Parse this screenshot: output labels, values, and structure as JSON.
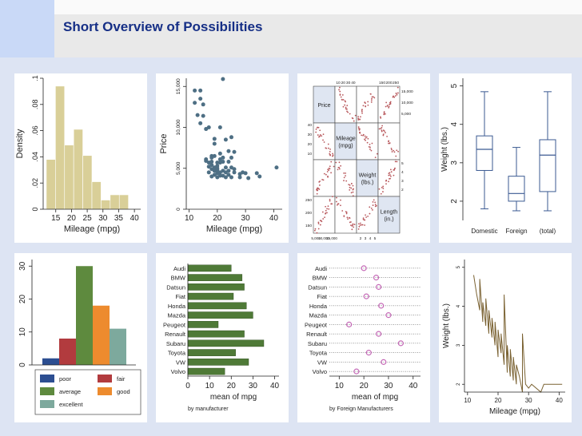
{
  "page": {
    "title": "Short Overview of Possibilities"
  },
  "colors": {
    "background": "#dde4f3",
    "title": "#162f86",
    "hist_fill": "#d9cf98",
    "scatter_point": "#4e6f84",
    "matrix_point": "#b8585c",
    "box_line": "#3b5a92",
    "hbar_fill": "#4f7a37",
    "dot": "#c569b7",
    "line": "#7a6232"
  },
  "chart_data": [
    {
      "id": "histogram",
      "type": "bar",
      "xlabel": "Mileage (mpg)",
      "ylabel": "Density",
      "xticks": [
        15,
        20,
        25,
        30,
        35,
        40
      ],
      "yticks": [
        0,
        0.02,
        0.04,
        0.06,
        0.08,
        0.1
      ],
      "ytick_labels": [
        "0",
        ".02",
        ".04",
        ".06",
        ".08",
        ".1"
      ],
      "xlim": [
        11,
        42
      ],
      "ylim": [
        0,
        0.1
      ],
      "bins": [
        {
          "x0": 12,
          "x1": 14.9,
          "density": 0.038
        },
        {
          "x0": 14.9,
          "x1": 17.8,
          "density": 0.094
        },
        {
          "x0": 17.8,
          "x1": 20.7,
          "density": 0.049
        },
        {
          "x0": 20.7,
          "x1": 23.6,
          "density": 0.061
        },
        {
          "x0": 23.6,
          "x1": 26.5,
          "density": 0.041
        },
        {
          "x0": 26.5,
          "x1": 29.4,
          "density": 0.021
        },
        {
          "x0": 29.4,
          "x1": 32.3,
          "density": 0.007
        },
        {
          "x0": 32.3,
          "x1": 35.2,
          "density": 0.011
        },
        {
          "x0": 35.2,
          "x1": 38.1,
          "density": 0.011
        }
      ]
    },
    {
      "id": "scatter",
      "type": "scatter",
      "xlabel": "Mileage (mpg)",
      "ylabel": "Price",
      "xticks": [
        10,
        20,
        30,
        40
      ],
      "yticks": [
        0,
        5000,
        10000,
        15000
      ],
      "ytick_labels": [
        "0",
        "5,000",
        "10,000",
        "15,000"
      ],
      "xlim": [
        9,
        43
      ],
      "ylim": [
        0,
        16000
      ],
      "points": [
        [
          12,
          13000
        ],
        [
          12,
          14500
        ],
        [
          13,
          11500
        ],
        [
          14,
          13500
        ],
        [
          14,
          14500
        ],
        [
          14,
          10500
        ],
        [
          15,
          11400
        ],
        [
          15,
          12800
        ],
        [
          16,
          9800
        ],
        [
          16,
          6100
        ],
        [
          16,
          5900
        ],
        [
          17,
          10000
        ],
        [
          17,
          4500
        ],
        [
          17,
          5200
        ],
        [
          17,
          5700
        ],
        [
          18,
          6300
        ],
        [
          18,
          5400
        ],
        [
          18,
          4900
        ],
        [
          18,
          5800
        ],
        [
          18,
          4000
        ],
        [
          19,
          4800
        ],
        [
          19,
          4700
        ],
        [
          19,
          4200
        ],
        [
          19,
          6500
        ],
        [
          19,
          5100
        ],
        [
          20,
          5000
        ],
        [
          20,
          4400
        ],
        [
          20,
          4800
        ],
        [
          20,
          3900
        ],
        [
          20,
          5300
        ],
        [
          21,
          4500
        ],
        [
          21,
          5700
        ],
        [
          21,
          4100
        ],
        [
          21,
          6100
        ],
        [
          22,
          4100
        ],
        [
          22,
          5800
        ],
        [
          22,
          4700
        ],
        [
          22,
          6300
        ],
        [
          23,
          5100
        ],
        [
          23,
          4500
        ],
        [
          23,
          3900
        ],
        [
          24,
          4200
        ],
        [
          24,
          5800
        ],
        [
          24,
          7100
        ],
        [
          24,
          4700
        ],
        [
          25,
          5100
        ],
        [
          25,
          3900
        ],
        [
          25,
          6300
        ],
        [
          26,
          4900
        ],
        [
          26,
          4500
        ],
        [
          28,
          4300
        ],
        [
          28,
          3900
        ],
        [
          29,
          4500
        ],
        [
          30,
          4400
        ],
        [
          31,
          3800
        ],
        [
          34,
          4400
        ],
        [
          35,
          4000
        ],
        [
          41,
          5100
        ],
        [
          25,
          8800
        ],
        [
          23,
          8500
        ],
        [
          26,
          7000
        ],
        [
          21,
          10000
        ],
        [
          19,
          8600
        ],
        [
          19,
          8000
        ],
        [
          21,
          6800
        ],
        [
          22,
          15900
        ],
        [
          20,
          5700
        ],
        [
          18,
          6500
        ]
      ]
    },
    {
      "id": "matrix",
      "type": "scatter",
      "variables": [
        "Price",
        "Mileage (mpg)",
        "Weight (lbs.)",
        "Length (in.)"
      ],
      "top_ticks_left": [
        "10",
        "20",
        "30",
        "40"
      ],
      "top_ticks_right": [
        "150",
        "200",
        "250"
      ],
      "right_ticks_upper": [
        "15,000",
        "10,000",
        "5,000"
      ],
      "right_ticks_lower": [
        "5",
        "4",
        "3",
        "2"
      ],
      "left_ticks_upper": [
        "40",
        "30",
        "20",
        "10"
      ],
      "left_ticks_lower": [
        "250",
        "200",
        "150"
      ],
      "bottom_ticks_left": [
        "5,000",
        "10,000",
        "15,000"
      ],
      "bottom_ticks_right": [
        "2",
        "3",
        "4",
        "5"
      ]
    },
    {
      "id": "boxplot",
      "type": "box",
      "ylabel": "Weight (lbs.)",
      "categories": [
        "Domestic",
        "Foreign",
        "(total)"
      ],
      "yticks": [
        2,
        3,
        4,
        5
      ],
      "ylim": [
        1.5,
        5.2
      ],
      "boxes": [
        {
          "min": 1.8,
          "q1": 2.8,
          "median": 3.35,
          "q3": 3.7,
          "max": 4.85
        },
        {
          "min": 1.75,
          "q1": 2.0,
          "median": 2.2,
          "q3": 2.65,
          "max": 3.4
        },
        {
          "min": 1.75,
          "q1": 2.25,
          "median": 3.2,
          "q3": 3.6,
          "max": 4.85
        }
      ]
    },
    {
      "id": "bars",
      "type": "bar",
      "yticks": [
        0,
        10,
        20,
        30
      ],
      "ylim": [
        0,
        32
      ],
      "series": [
        {
          "name": "poor",
          "value": 2,
          "color": "#2c4e91"
        },
        {
          "name": "fair",
          "value": 8,
          "color": "#b23b3e"
        },
        {
          "name": "average",
          "value": 30,
          "color": "#5e8a3e"
        },
        {
          "name": "good",
          "value": 18,
          "color": "#ed8b2e"
        },
        {
          "name": "excellent",
          "value": 11,
          "color": "#7da99d"
        }
      ]
    },
    {
      "id": "hbar",
      "type": "bar",
      "orientation": "horizontal",
      "xlabel": "mean of mpg",
      "note": "by manufacturer",
      "categories": [
        "Audi",
        "BMW",
        "Datsun",
        "Fiat",
        "Honda",
        "Mazda",
        "Peugeot",
        "Renault",
        "Subaru",
        "Toyota",
        "VW",
        "Volvo"
      ],
      "values": [
        20,
        25,
        26,
        21,
        27,
        30,
        14,
        26,
        35,
        22,
        28,
        17
      ],
      "xticks": [
        0,
        10,
        20,
        30,
        40
      ],
      "xlim": [
        0,
        42
      ]
    },
    {
      "id": "dotplot",
      "type": "scatter",
      "xlabel": "mean of mpg",
      "note": "by Foreign Manufacturers",
      "categories": [
        "Audi",
        "BMW",
        "Datsun",
        "Fiat",
        "Honda",
        "Mazda",
        "Peugeot",
        "Renault",
        "Subaru",
        "Toyota",
        "VW",
        "Volvo"
      ],
      "values": [
        20,
        25,
        26,
        21,
        27,
        30,
        14,
        26,
        35,
        22,
        28,
        17
      ],
      "xticks": [
        10,
        20,
        30,
        40
      ],
      "xlim": [
        6,
        43
      ]
    },
    {
      "id": "lineplot",
      "type": "line",
      "xlabel": "Mileage (mpg)",
      "ylabel": "Weight (lbs.)",
      "xticks": [
        10,
        20,
        30,
        40
      ],
      "yticks": [
        2,
        3,
        4,
        5
      ],
      "xlim": [
        9,
        42
      ],
      "ylim": [
        1.8,
        5.2
      ],
      "points": [
        [
          12,
          4.8
        ],
        [
          13,
          4.3
        ],
        [
          14,
          3.9
        ],
        [
          14,
          4.7
        ],
        [
          15,
          3.6
        ],
        [
          15,
          4.1
        ],
        [
          16,
          3.5
        ],
        [
          16,
          4.2
        ],
        [
          17,
          3.3
        ],
        [
          17,
          3.9
        ],
        [
          18,
          3.2
        ],
        [
          18,
          3.7
        ],
        [
          19,
          3.0
        ],
        [
          19,
          3.6
        ],
        [
          20,
          2.7
        ],
        [
          20,
          3.4
        ],
        [
          21,
          2.8
        ],
        [
          21,
          3.3
        ],
        [
          22,
          2.5
        ],
        [
          22,
          4.3
        ],
        [
          23,
          2.3
        ],
        [
          23,
          3.0
        ],
        [
          24,
          2.2
        ],
        [
          24,
          2.9
        ],
        [
          25,
          2.1
        ],
        [
          25,
          2.7
        ],
        [
          26,
          2.0
        ],
        [
          26,
          2.5
        ],
        [
          27,
          2.2
        ],
        [
          28,
          1.8
        ],
        [
          28,
          3.3
        ],
        [
          29,
          2.0
        ],
        [
          30,
          1.9
        ],
        [
          31,
          2.0
        ],
        [
          34,
          1.8
        ],
        [
          35,
          2.0
        ],
        [
          41,
          2.0
        ]
      ]
    }
  ]
}
